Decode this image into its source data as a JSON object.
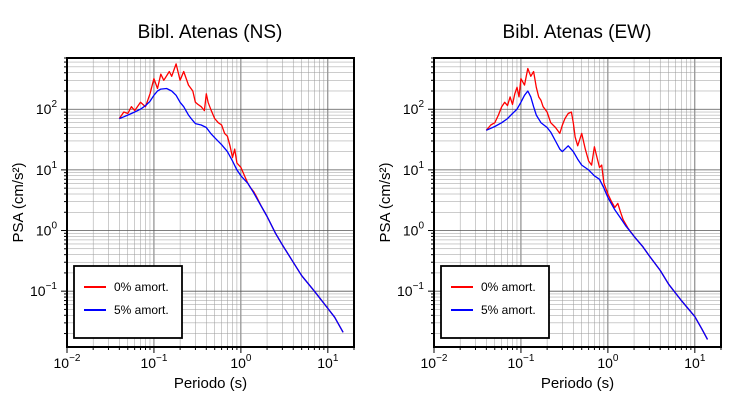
{
  "chart_data": [
    {
      "type": "line",
      "title": "Bibl. Atenas (NS)",
      "xlabel": "Periodo (s)",
      "ylabel": "PSA (cm/s²)",
      "xscale": "log",
      "yscale": "log",
      "xlim": [
        0.01,
        20
      ],
      "ylim": [
        0.012,
        700
      ],
      "grid": true,
      "legend_position": "bottom-left",
      "x_ticks": [
        {
          "base": "10",
          "exp": "−2"
        },
        {
          "base": "10",
          "exp": "−1"
        },
        {
          "base": "10",
          "exp": "0"
        },
        {
          "base": "10",
          "exp": "1"
        }
      ],
      "y_ticks": [
        {
          "base": "10",
          "exp": "−1"
        },
        {
          "base": "10",
          "exp": "0"
        },
        {
          "base": "10",
          "exp": "1"
        },
        {
          "base": "10",
          "exp": "2"
        }
      ],
      "series": [
        {
          "name": "0% amort.",
          "color": "#ff0000",
          "points": [
            [
              0.04,
              70
            ],
            [
              0.045,
              90
            ],
            [
              0.05,
              85
            ],
            [
              0.055,
              110
            ],
            [
              0.06,
              95
            ],
            [
              0.07,
              130
            ],
            [
              0.08,
              110
            ],
            [
              0.09,
              180
            ],
            [
              0.1,
              320
            ],
            [
              0.11,
              220
            ],
            [
              0.12,
              380
            ],
            [
              0.13,
              300
            ],
            [
              0.15,
              420
            ],
            [
              0.16,
              350
            ],
            [
              0.18,
              560
            ],
            [
              0.2,
              300
            ],
            [
              0.22,
              420
            ],
            [
              0.25,
              250
            ],
            [
              0.28,
              200
            ],
            [
              0.3,
              130
            ],
            [
              0.32,
              120
            ],
            [
              0.35,
              110
            ],
            [
              0.38,
              95
            ],
            [
              0.4,
              180
            ],
            [
              0.42,
              130
            ],
            [
              0.45,
              100
            ],
            [
              0.5,
              70
            ],
            [
              0.55,
              60
            ],
            [
              0.6,
              55
            ],
            [
              0.65,
              40
            ],
            [
              0.7,
              36
            ],
            [
              0.75,
              25
            ],
            [
              0.8,
              16
            ],
            [
              0.85,
              22
            ],
            [
              0.9,
              13
            ],
            [
              1.0,
              11
            ],
            [
              1.1,
              8
            ],
            [
              1.2,
              6
            ],
            [
              1.3,
              5
            ],
            [
              1.4,
              4.4
            ],
            [
              1.5,
              3.7
            ],
            [
              1.7,
              2.6
            ],
            [
              2.0,
              1.7
            ],
            [
              2.5,
              0.9
            ],
            [
              3.0,
              0.58
            ],
            [
              4.0,
              0.3
            ],
            [
              5.0,
              0.18
            ],
            [
              7.0,
              0.1
            ],
            [
              10.0,
              0.052
            ],
            [
              12.0,
              0.037
            ],
            [
              15.0,
              0.021
            ]
          ]
        },
        {
          "name": "5% amort.",
          "color": "#0000ff",
          "points": [
            [
              0.04,
              70
            ],
            [
              0.045,
              75
            ],
            [
              0.05,
              80
            ],
            [
              0.06,
              90
            ],
            [
              0.07,
              100
            ],
            [
              0.08,
              115
            ],
            [
              0.09,
              135
            ],
            [
              0.1,
              170
            ],
            [
              0.11,
              200
            ],
            [
              0.12,
              215
            ],
            [
              0.14,
              220
            ],
            [
              0.16,
              200
            ],
            [
              0.18,
              170
            ],
            [
              0.2,
              130
            ],
            [
              0.22,
              110
            ],
            [
              0.25,
              80
            ],
            [
              0.28,
              65
            ],
            [
              0.3,
              58
            ],
            [
              0.35,
              55
            ],
            [
              0.4,
              50
            ],
            [
              0.45,
              40
            ],
            [
              0.5,
              34
            ],
            [
              0.6,
              26
            ],
            [
              0.7,
              20
            ],
            [
              0.8,
              14
            ],
            [
              0.9,
              10
            ],
            [
              1.0,
              8
            ],
            [
              1.2,
              6
            ],
            [
              1.4,
              4.2
            ],
            [
              1.6,
              3.0
            ],
            [
              2.0,
              1.7
            ],
            [
              2.5,
              0.9
            ],
            [
              3.0,
              0.58
            ],
            [
              4.0,
              0.3
            ],
            [
              5.0,
              0.18
            ],
            [
              7.0,
              0.1
            ],
            [
              10.0,
              0.052
            ],
            [
              12.0,
              0.037
            ],
            [
              15.0,
              0.021
            ]
          ]
        }
      ]
    },
    {
      "type": "line",
      "title": "Bibl. Atenas (EW)",
      "xlabel": "Periodo (s)",
      "ylabel": "PSA (cm/s²)",
      "xscale": "log",
      "yscale": "log",
      "xlim": [
        0.01,
        20
      ],
      "ylim": [
        0.012,
        700
      ],
      "grid": true,
      "legend_position": "bottom-left",
      "x_ticks": [
        {
          "base": "10",
          "exp": "−2"
        },
        {
          "base": "10",
          "exp": "−1"
        },
        {
          "base": "10",
          "exp": "0"
        },
        {
          "base": "10",
          "exp": "1"
        }
      ],
      "y_ticks": [
        {
          "base": "10",
          "exp": "−1"
        },
        {
          "base": "10",
          "exp": "0"
        },
        {
          "base": "10",
          "exp": "1"
        },
        {
          "base": "10",
          "exp": "2"
        }
      ],
      "series": [
        {
          "name": "0% amort.",
          "color": "#ff0000",
          "points": [
            [
              0.04,
              45
            ],
            [
              0.045,
              55
            ],
            [
              0.05,
              60
            ],
            [
              0.055,
              80
            ],
            [
              0.06,
              110
            ],
            [
              0.065,
              130
            ],
            [
              0.07,
              115
            ],
            [
              0.075,
              160
            ],
            [
              0.08,
              120
            ],
            [
              0.085,
              180
            ],
            [
              0.09,
              230
            ],
            [
              0.095,
              160
            ],
            [
              0.1,
              320
            ],
            [
              0.11,
              250
            ],
            [
              0.12,
              470
            ],
            [
              0.13,
              350
            ],
            [
              0.14,
              420
            ],
            [
              0.15,
              230
            ],
            [
              0.16,
              160
            ],
            [
              0.17,
              140
            ],
            [
              0.18,
              110
            ],
            [
              0.2,
              90
            ],
            [
              0.22,
              60
            ],
            [
              0.25,
              50
            ],
            [
              0.28,
              40
            ],
            [
              0.3,
              55
            ],
            [
              0.32,
              70
            ],
            [
              0.35,
              85
            ],
            [
              0.38,
              90
            ],
            [
              0.4,
              60
            ],
            [
              0.42,
              35
            ],
            [
              0.45,
              25
            ],
            [
              0.5,
              40
            ],
            [
              0.55,
              22
            ],
            [
              0.6,
              14
            ],
            [
              0.65,
              12
            ],
            [
              0.7,
              24
            ],
            [
              0.75,
              16
            ],
            [
              0.8,
              11
            ],
            [
              0.85,
              12
            ],
            [
              0.9,
              6
            ],
            [
              1.0,
              4
            ],
            [
              1.1,
              3
            ],
            [
              1.2,
              2.4
            ],
            [
              1.3,
              2.8
            ],
            [
              1.4,
              2.0
            ],
            [
              1.5,
              1.5
            ],
            [
              1.7,
              1.1
            ],
            [
              2.0,
              0.8
            ],
            [
              2.5,
              0.55
            ],
            [
              3.0,
              0.38
            ],
            [
              4.0,
              0.22
            ],
            [
              5.0,
              0.13
            ],
            [
              7.0,
              0.07
            ],
            [
              10.0,
              0.038
            ],
            [
              12.0,
              0.024
            ],
            [
              14.0,
              0.016
            ]
          ]
        },
        {
          "name": "5% amort.",
          "color": "#0000ff",
          "points": [
            [
              0.04,
              45
            ],
            [
              0.05,
              52
            ],
            [
              0.06,
              60
            ],
            [
              0.07,
              70
            ],
            [
              0.08,
              85
            ],
            [
              0.09,
              100
            ],
            [
              0.1,
              130
            ],
            [
              0.11,
              170
            ],
            [
              0.12,
              200
            ],
            [
              0.13,
              160
            ],
            [
              0.14,
              110
            ],
            [
              0.15,
              80
            ],
            [
              0.17,
              60
            ],
            [
              0.2,
              50
            ],
            [
              0.22,
              42
            ],
            [
              0.25,
              30
            ],
            [
              0.28,
              22
            ],
            [
              0.3,
              20
            ],
            [
              0.35,
              25
            ],
            [
              0.4,
              20
            ],
            [
              0.45,
              15
            ],
            [
              0.5,
              12
            ],
            [
              0.6,
              10
            ],
            [
              0.7,
              8
            ],
            [
              0.8,
              7
            ],
            [
              0.9,
              5
            ],
            [
              1.0,
              3.5
            ],
            [
              1.2,
              2.2
            ],
            [
              1.4,
              1.6
            ],
            [
              1.6,
              1.2
            ],
            [
              2.0,
              0.8
            ],
            [
              2.5,
              0.55
            ],
            [
              3.0,
              0.38
            ],
            [
              4.0,
              0.22
            ],
            [
              5.0,
              0.13
            ],
            [
              7.0,
              0.07
            ],
            [
              10.0,
              0.038
            ],
            [
              12.0,
              0.024
            ],
            [
              14.0,
              0.016
            ]
          ]
        }
      ]
    }
  ]
}
